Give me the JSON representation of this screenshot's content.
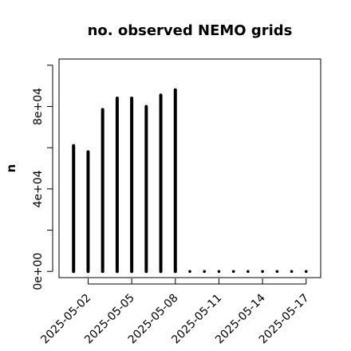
{
  "chart_data": {
    "type": "bar",
    "title": "no. observed NEMO grids",
    "xlabel": "",
    "ylabel": "n",
    "categories": [
      "2025-05-01",
      "2025-05-02",
      "2025-05-03",
      "2025-05-04",
      "2025-05-05",
      "2025-05-06",
      "2025-05-07",
      "2025-05-08",
      "2025-05-09",
      "2025-05-10",
      "2025-05-11",
      "2025-05-12",
      "2025-05-13",
      "2025-05-14",
      "2025-05-15",
      "2025-05-16",
      "2025-05-17"
    ],
    "values": [
      61000,
      58000,
      78500,
      84000,
      84000,
      80000,
      85500,
      88000,
      0,
      0,
      0,
      0,
      0,
      0,
      0,
      0,
      0
    ],
    "x_tick_labels": [
      "2025-05-02",
      "2025-05-05",
      "2025-05-08",
      "2025-05-11",
      "2025-05-14",
      "2025-05-17"
    ],
    "y_tick_labels": [
      "0e+00",
      "4e+04",
      "8e+04"
    ],
    "y_ticks": [
      0,
      20000,
      40000,
      60000,
      80000,
      100000
    ],
    "y_tick_label_values": [
      0,
      40000,
      80000
    ],
    "ylim": [
      -3000,
      103000
    ],
    "xlim": [
      "2025-04-30",
      "2025-05-18"
    ],
    "grid": false,
    "legend": "none"
  }
}
